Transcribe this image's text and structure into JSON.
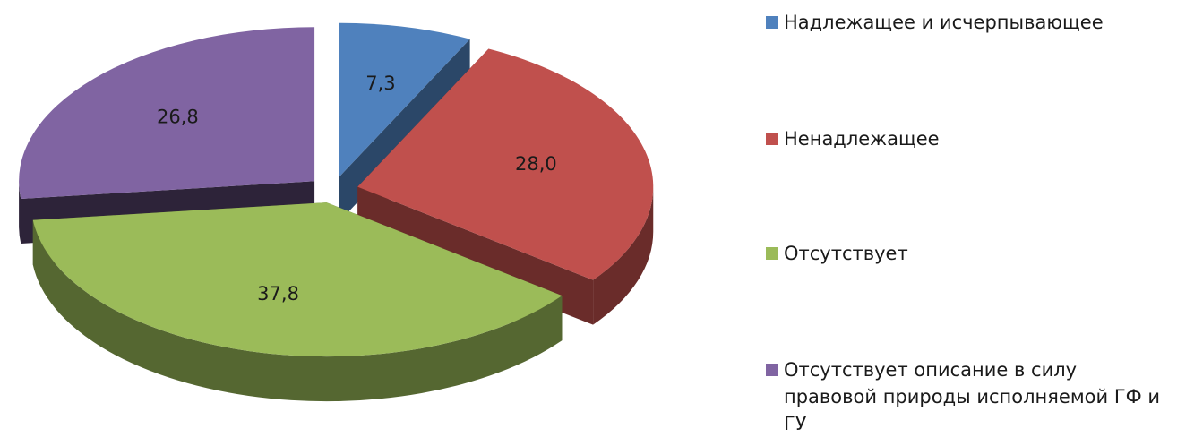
{
  "chart_data": {
    "type": "pie",
    "categories": [
      "Надлежащее и исчерпывающее",
      "Ненадлежащее",
      "Отсутствует",
      "Отсутствует описание в силу правовой природы исполняемой ГФ и ГУ"
    ],
    "values": [
      7.3,
      28.0,
      37.8,
      26.8
    ],
    "value_labels": [
      "7,3",
      "28,0",
      "37,8",
      "26,8"
    ],
    "colors": [
      "#4f81bd",
      "#c0504d",
      "#9bbb59",
      "#8064a2"
    ],
    "legend": "right"
  }
}
